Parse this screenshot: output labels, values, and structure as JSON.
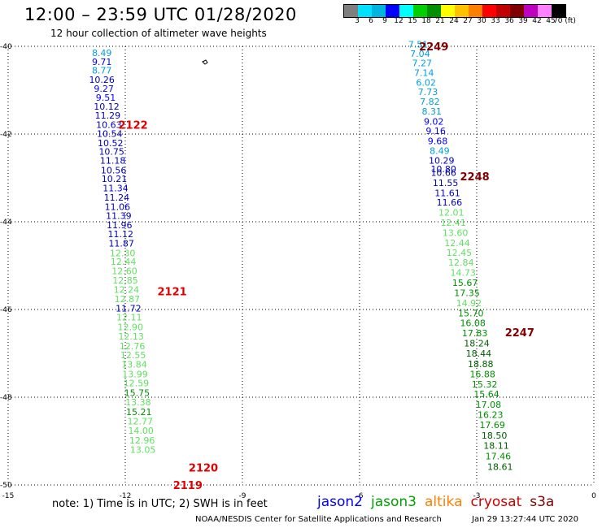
{
  "header": {
    "title": "12:00 – 23:59 UTC 01/28/2020",
    "subtitle": "12 hour collection of altimeter wave heights"
  },
  "color_scale": {
    "colors": [
      "#7f7f7f",
      "#00e0ff",
      "#00b4e0",
      "#0000ff",
      "#00ffff",
      "#00d000",
      "#009000",
      "#ffff00",
      "#ffc000",
      "#ff8000",
      "#ff0000",
      "#c00000",
      "#800000",
      "#c000c0",
      "#ff80ff",
      "#000000"
    ],
    "labels": [
      "3",
      "6",
      "9",
      "12",
      "15",
      "18",
      "21",
      "24",
      "27",
      "30",
      "33",
      "36",
      "39",
      "42",
      "45",
      "70 (ft)"
    ]
  },
  "chart_data": {
    "type": "scatter",
    "title": "12 hour collection of altimeter wave heights",
    "xlim": [
      -15,
      0
    ],
    "ylim": [
      -50,
      -40
    ],
    "x_ticks": [
      "-15",
      "-12",
      "-9",
      "-6",
      "-3",
      "0"
    ],
    "y_ticks": [
      "-40",
      "-42",
      "-44",
      "-46",
      "-48",
      "-50"
    ],
    "tracks": [
      {
        "name": "pass_west",
        "points": [
          {
            "x": -12.6,
            "y": -40.15,
            "swh": "8.49",
            "color": "#00a0e0"
          },
          {
            "x": -12.6,
            "y": -40.35,
            "swh": "9.71",
            "color": "#0000ff"
          },
          {
            "x": -12.6,
            "y": -40.55,
            "swh": "8.77",
            "color": "#00a0e0"
          },
          {
            "x": -12.6,
            "y": -40.76,
            "swh": "10.26",
            "color": "#0000c0"
          },
          {
            "x": -12.55,
            "y": -40.96,
            "swh": "9.27",
            "color": "#0000ff"
          },
          {
            "x": -12.5,
            "y": -41.17,
            "swh": "9.51",
            "color": "#0000ff"
          },
          {
            "x": -12.48,
            "y": -41.37,
            "swh": "10.12",
            "color": "#0000c0"
          },
          {
            "x": -12.45,
            "y": -41.57,
            "swh": "11.29",
            "color": "#0000c0"
          },
          {
            "x": -12.42,
            "y": -41.79,
            "swh": "10.63",
            "color": "#0000c0"
          },
          {
            "x": -12.4,
            "y": -41.99,
            "swh": "10.54",
            "color": "#0000c0"
          },
          {
            "x": -12.38,
            "y": -42.2,
            "swh": "10.52",
            "color": "#0000c0"
          },
          {
            "x": -12.35,
            "y": -42.4,
            "swh": "10.75",
            "color": "#0000c0"
          },
          {
            "x": -12.32,
            "y": -42.6,
            "swh": "11.18",
            "color": "#0000c0"
          },
          {
            "x": -12.3,
            "y": -42.82,
            "swh": "10.56",
            "color": "#0000c0"
          },
          {
            "x": -12.28,
            "y": -43.02,
            "swh": "10.21",
            "color": "#0000c0"
          },
          {
            "x": -12.25,
            "y": -43.23,
            "swh": "11.34",
            "color": "#0000c0"
          },
          {
            "x": -12.22,
            "y": -43.44,
            "swh": "11.24",
            "color": "#0000c0"
          },
          {
            "x": -12.2,
            "y": -43.66,
            "swh": "11.06",
            "color": "#0000c0"
          },
          {
            "x": -12.17,
            "y": -43.86,
            "swh": "11.39",
            "color": "#0000c0"
          },
          {
            "x": -12.15,
            "y": -44.07,
            "swh": "11.96",
            "color": "#0000c0"
          },
          {
            "x": -12.12,
            "y": -44.28,
            "swh": "11.12",
            "color": "#0000c0"
          },
          {
            "x": -12.1,
            "y": -44.49,
            "swh": "11.87",
            "color": "#0000c0"
          },
          {
            "x": -12.07,
            "y": -44.71,
            "swh": "12.30",
            "color": "#60e060"
          },
          {
            "x": -12.05,
            "y": -44.91,
            "swh": "12.44",
            "color": "#60e060"
          },
          {
            "x": -12.02,
            "y": -45.12,
            "swh": "12.60",
            "color": "#60e060"
          },
          {
            "x": -12.0,
            "y": -45.33,
            "swh": "12.85",
            "color": "#60e060"
          },
          {
            "x": -11.97,
            "y": -45.55,
            "swh": "12.24",
            "color": "#60e060"
          },
          {
            "x": -11.95,
            "y": -45.76,
            "swh": "12.87",
            "color": "#60e060"
          },
          {
            "x": -11.92,
            "y": -45.97,
            "swh": "11.72",
            "color": "#0000c0"
          },
          {
            "x": -11.9,
            "y": -46.18,
            "swh": "12.11",
            "color": "#60e060"
          },
          {
            "x": -11.87,
            "y": -46.4,
            "swh": "12.90",
            "color": "#60e060"
          },
          {
            "x": -11.85,
            "y": -46.61,
            "swh": "12.13",
            "color": "#60e060"
          },
          {
            "x": -11.82,
            "y": -46.83,
            "swh": "12.76",
            "color": "#60e060"
          },
          {
            "x": -11.8,
            "y": -47.04,
            "swh": "12.55",
            "color": "#60e060"
          },
          {
            "x": -11.77,
            "y": -47.25,
            "swh": "13.84",
            "color": "#60e060"
          },
          {
            "x": -11.75,
            "y": -47.47,
            "swh": "13.99",
            "color": "#60e060"
          },
          {
            "x": -11.72,
            "y": -47.68,
            "swh": "12.59",
            "color": "#60e060"
          },
          {
            "x": -11.7,
            "y": -47.9,
            "swh": "15.75",
            "color": "#009000"
          },
          {
            "x": -11.67,
            "y": -48.11,
            "swh": "13.38",
            "color": "#60e060"
          },
          {
            "x": -11.65,
            "y": -48.33,
            "swh": "15.21",
            "color": "#009000"
          },
          {
            "x": -11.62,
            "y": -48.55,
            "swh": "12.77",
            "color": "#60e060"
          },
          {
            "x": -11.6,
            "y": -48.76,
            "swh": "14.00",
            "color": "#60e060"
          },
          {
            "x": -11.57,
            "y": -48.98,
            "swh": "12.96",
            "color": "#60e060"
          },
          {
            "x": -11.55,
            "y": -49.19,
            "swh": "13.05",
            "color": "#60e060"
          }
        ]
      },
      {
        "name": "pass_east",
        "points": [
          {
            "x": -4.5,
            "y": -39.95,
            "swh": "7.51",
            "color": "#00a0e0"
          },
          {
            "x": -4.45,
            "y": -40.17,
            "swh": "7.04",
            "color": "#00a0e0"
          },
          {
            "x": -4.4,
            "y": -40.38,
            "swh": "7.27",
            "color": "#00a0e0"
          },
          {
            "x": -4.35,
            "y": -40.6,
            "swh": "7.14",
            "color": "#00a0e0"
          },
          {
            "x": -4.3,
            "y": -40.82,
            "swh": "6.02",
            "color": "#00a0e0"
          },
          {
            "x": -4.25,
            "y": -41.04,
            "swh": "7.73",
            "color": "#00a0e0"
          },
          {
            "x": -4.2,
            "y": -41.26,
            "swh": "7.82",
            "color": "#00a0e0"
          },
          {
            "x": -4.15,
            "y": -41.48,
            "swh": "8.31",
            "color": "#00a0e0"
          },
          {
            "x": -4.1,
            "y": -41.71,
            "swh": "9.02",
            "color": "#0000ff"
          },
          {
            "x": -4.05,
            "y": -41.93,
            "swh": "9.16",
            "color": "#0000ff"
          },
          {
            "x": -4.0,
            "y": -42.16,
            "swh": "9.68",
            "color": "#0000ff"
          },
          {
            "x": -3.95,
            "y": -42.38,
            "swh": "8.49",
            "color": "#00a0e0"
          },
          {
            "x": -3.9,
            "y": -42.6,
            "swh": "10.29",
            "color": "#0000c0"
          },
          {
            "x": -3.85,
            "y": -42.8,
            "swh": "10.80",
            "color": "#0000c0"
          },
          {
            "x": -3.85,
            "y": -42.88,
            "swh": "10.66",
            "color": "#0000c0"
          },
          {
            "x": -3.8,
            "y": -43.11,
            "swh": "11.55",
            "color": "#0000c0"
          },
          {
            "x": -3.75,
            "y": -43.34,
            "swh": "11.61",
            "color": "#0000c0"
          },
          {
            "x": -3.7,
            "y": -43.56,
            "swh": "11.66",
            "color": "#0000c0"
          },
          {
            "x": -3.65,
            "y": -43.79,
            "swh": "12.01",
            "color": "#60e060"
          },
          {
            "x": -3.6,
            "y": -44.02,
            "swh": "12.41",
            "color": "#60e060"
          },
          {
            "x": -3.55,
            "y": -44.25,
            "swh": "13.60",
            "color": "#60e060"
          },
          {
            "x": -3.5,
            "y": -44.48,
            "swh": "12.44",
            "color": "#60e060"
          },
          {
            "x": -3.45,
            "y": -44.7,
            "swh": "12.45",
            "color": "#60e060"
          },
          {
            "x": -3.4,
            "y": -44.93,
            "swh": "12.84",
            "color": "#60e060"
          },
          {
            "x": -3.35,
            "y": -45.16,
            "swh": "14.73",
            "color": "#60e060"
          },
          {
            "x": -3.3,
            "y": -45.39,
            "swh": "15.67",
            "color": "#009000"
          },
          {
            "x": -3.25,
            "y": -45.62,
            "swh": "17.35",
            "color": "#009000"
          },
          {
            "x": -3.2,
            "y": -45.85,
            "swh": "14.92",
            "color": "#60e060"
          },
          {
            "x": -3.15,
            "y": -46.08,
            "swh": "15.70",
            "color": "#009000"
          },
          {
            "x": -3.1,
            "y": -46.31,
            "swh": "16.08",
            "color": "#009000"
          },
          {
            "x": -3.05,
            "y": -46.54,
            "swh": "17.83",
            "color": "#009000"
          },
          {
            "x": -3.0,
            "y": -46.77,
            "swh": "18.24",
            "color": "#006000"
          },
          {
            "x": -2.95,
            "y": -47.0,
            "swh": "18.44",
            "color": "#006000"
          },
          {
            "x": -2.9,
            "y": -47.24,
            "swh": "18.88",
            "color": "#006000"
          },
          {
            "x": -2.85,
            "y": -47.47,
            "swh": "16.88",
            "color": "#009000"
          },
          {
            "x": -2.8,
            "y": -47.7,
            "swh": "15.32",
            "color": "#009000"
          },
          {
            "x": -2.75,
            "y": -47.93,
            "swh": "15.64",
            "color": "#009000"
          },
          {
            "x": -2.7,
            "y": -48.17,
            "swh": "17.08",
            "color": "#009000"
          },
          {
            "x": -2.65,
            "y": -48.4,
            "swh": "16.23",
            "color": "#009000"
          },
          {
            "x": -2.6,
            "y": -48.63,
            "swh": "17.69",
            "color": "#009000"
          },
          {
            "x": -2.55,
            "y": -48.87,
            "swh": "18.50",
            "color": "#006000"
          },
          {
            "x": -2.5,
            "y": -49.1,
            "swh": "18.11",
            "color": "#006000"
          },
          {
            "x": -2.45,
            "y": -49.34,
            "swh": "17.46",
            "color": "#009000"
          },
          {
            "x": -2.4,
            "y": -49.58,
            "swh": "18.61",
            "color": "#006000"
          }
        ]
      }
    ],
    "time_labels": [
      {
        "x": -11.8,
        "y": -41.79,
        "text": "2122",
        "color": "#e00000"
      },
      {
        "x": -10.8,
        "y": -45.58,
        "text": "2121",
        "color": "#e00000"
      },
      {
        "x": -10.0,
        "y": -49.6,
        "text": "2120",
        "color": "#e00000"
      },
      {
        "x": -10.4,
        "y": -50.0,
        "text": "2119",
        "color": "#e00000"
      },
      {
        "x": -4.1,
        "y": -40.0,
        "text": "2249",
        "color": "#800000"
      },
      {
        "x": -3.05,
        "y": -42.96,
        "text": "2248",
        "color": "#800000"
      },
      {
        "x": -1.9,
        "y": -46.52,
        "text": "2247",
        "color": "#800000"
      }
    ]
  },
  "footer": {
    "note": "note: 1) Time is in UTC; 2) SWH is in feet",
    "satellites": [
      {
        "name": "jason2",
        "color": "#0000ff"
      },
      {
        "name": "jason3",
        "color": "#00a000"
      },
      {
        "name": "altika",
        "color": "#ff8000"
      },
      {
        "name": "cryosat",
        "color": "#d00000"
      },
      {
        "name": "s3a",
        "color": "#800000"
      }
    ],
    "credit": "NOAA/NESDIS Center for Satellite Applications and Research",
    "timestamp": "Jan 29 13:27:44 UTC 2020"
  }
}
